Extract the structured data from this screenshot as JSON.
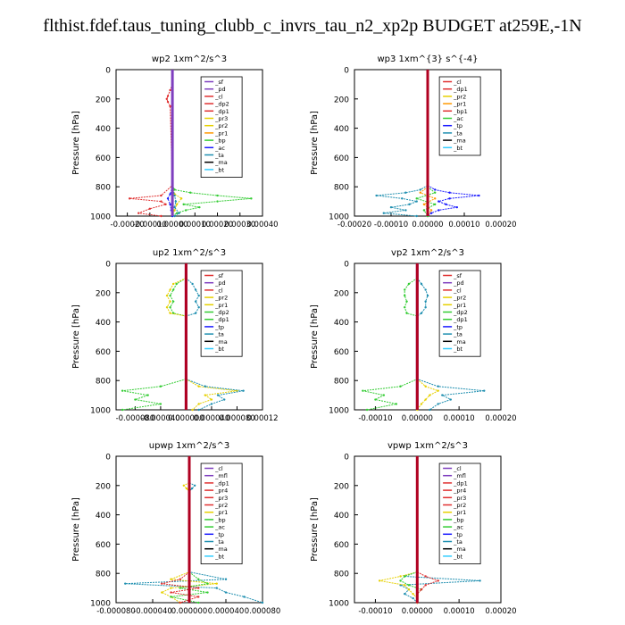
{
  "title": "flthist.fdef.taus_tuning_clubb_c_invrs_tau_n2_xp2p  BUDGET at259E,-1N",
  "y_axis_label": "Pressure [hPa]",
  "y_ticks": [
    "0",
    "200",
    "400",
    "600",
    "800",
    "1000"
  ],
  "colors": {
    "axis": "#000000",
    "red": "#e03030",
    "green": "#33cc33",
    "yellow": "#e6d000",
    "orange": "#ff9900",
    "blue": "#1a1aff",
    "teal": "#1f8fb0",
    "purple": "#7f3fbf",
    "darkred": "#b00020"
  },
  "chart_data": [
    {
      "type": "line",
      "title": "wp2   1xm^2/s^3",
      "ylabel": "Pressure [hPa]",
      "ylim": [
        1000,
        0
      ],
      "xlim": [
        -0.00025,
        0.0004
      ],
      "x_tick_labels": [
        "-0.00020",
        "-0.00010",
        "0.00000",
        "0.00010",
        "0.00020",
        "0.00030",
        "0.00040"
      ],
      "legend": [
        "_sf",
        "_pd",
        "_cl",
        "_dp2",
        "_dp1",
        "_pr3",
        "_pr2",
        "_pr1",
        "_bp",
        "_ac",
        "_ta",
        "_ma",
        "_bt"
      ],
      "legend_colors": [
        "#7f3fbf",
        "#7f3fbf",
        "#e03030",
        "#e03030",
        "#e03030",
        "#e6d000",
        "#e6d000",
        "#ff9900",
        "#33cc33",
        "#1a1aff",
        "#1f8fb0",
        "#000000",
        "#33ccff"
      ],
      "series": [
        {
          "name": "_pr1",
          "color": "#33cc33",
          "p": [
            790,
            820,
            840,
            860,
            880,
            900,
            920,
            940,
            960,
            980,
            1000
          ],
          "x": [
            0,
            1e-05,
            8e-05,
            0.0002,
            0.00035,
            0.0002,
            5e-05,
            0.00012,
            6e-05,
            2e-05,
            0
          ]
        },
        {
          "name": "_dp1",
          "color": "#e03030",
          "p": [
            100,
            140,
            180,
            200,
            220,
            250,
            790,
            860,
            880,
            900,
            920,
            950,
            980,
            1000
          ],
          "x": [
            0,
            -1e-05,
            -2e-05,
            -2.5e-05,
            -2e-05,
            -1e-05,
            0,
            -5e-05,
            -0.00019,
            -5e-05,
            -3e-05,
            -0.0001,
            -0.00015,
            -5e-05
          ]
        },
        {
          "name": "_pr2",
          "color": "#e6d000",
          "p": [
            800,
            850,
            880,
            920,
            960,
            1000
          ],
          "x": [
            0,
            1e-05,
            4e-05,
            2e-05,
            1e-05,
            0
          ]
        },
        {
          "name": "_ac",
          "color": "#1a1aff",
          "p": [
            800,
            850,
            880,
            920,
            960,
            1000
          ],
          "x": [
            0,
            -1e-05,
            -2e-05,
            -1e-05,
            -5e-06,
            0
          ]
        },
        {
          "name": "_ta",
          "color": "#1f8fb0",
          "p": [
            800,
            860,
            900,
            940,
            980,
            1000
          ],
          "x": [
            0,
            1e-05,
            1.5e-05,
            1e-05,
            3e-05,
            1e-05
          ]
        },
        {
          "name": "_bt",
          "color": "#7f3fbf",
          "p": [
            0,
            1000
          ],
          "x": [
            0,
            0
          ]
        }
      ]
    },
    {
      "type": "line",
      "title": "wp3   1xm^{3} s^{-4}",
      "ylabel": "Pressure [hPa]",
      "ylim": [
        1000,
        0
      ],
      "xlim": [
        -0.0002,
        0.0002
      ],
      "x_tick_labels": [
        "-0.00020",
        "-0.00010",
        "0.00000",
        "0.00010",
        "0.00020"
      ],
      "legend": [
        "_cl",
        "_dp1",
        "_pr2",
        "_pr1",
        "_bp1",
        "_ac",
        "_tp",
        "_ta",
        "_ma",
        "_bt"
      ],
      "legend_colors": [
        "#e03030",
        "#e03030",
        "#e6d000",
        "#ff9900",
        "#e03030",
        "#33cc33",
        "#1a1aff",
        "#1f8fb0",
        "#000000",
        "#33ccff"
      ],
      "series": [
        {
          "name": "_tp",
          "color": "#1a1aff",
          "p": [
            790,
            820,
            840,
            860,
            880,
            900,
            920,
            940,
            960,
            980,
            1000
          ],
          "x": [
            0,
            2e-05,
            6e-05,
            0.00014,
            6e-05,
            3e-05,
            5e-05,
            8e-05,
            3e-05,
            1e-05,
            0
          ]
        },
        {
          "name": "_ta",
          "color": "#1f8fb0",
          "p": [
            790,
            820,
            840,
            860,
            880,
            900,
            920,
            940,
            960,
            980,
            1000
          ],
          "x": [
            0,
            -2e-05,
            -6e-05,
            -0.00014,
            -7e-05,
            -3e-05,
            -5e-05,
            -0.0001,
            -6e-05,
            -0.00012,
            -3e-05
          ]
        },
        {
          "name": "_pr1",
          "color": "#ff9900",
          "p": [
            800,
            840,
            880,
            920,
            960,
            1000
          ],
          "x": [
            0,
            -2e-05,
            2e-05,
            -1e-05,
            1e-05,
            0
          ]
        },
        {
          "name": "_ac",
          "color": "#33cc33",
          "p": [
            800,
            840,
            880,
            920,
            960,
            1000
          ],
          "x": [
            0,
            2e-05,
            -3e-05,
            2e-05,
            -1e-05,
            0
          ]
        },
        {
          "name": "_cl",
          "color": "#b00020",
          "p": [
            0,
            1000
          ],
          "x": [
            0,
            0
          ]
        }
      ]
    },
    {
      "type": "line",
      "title": "up2   1xm^2/s^3",
      "ylabel": "Pressure [hPa]",
      "ylim": [
        1000,
        0
      ],
      "xlim": [
        -0.00011,
        0.00012
      ],
      "x_tick_labels": [
        "-0.000080",
        "-0.000040",
        "0.000000",
        "0.000040",
        "0.000080",
        "0.00012"
      ],
      "legend": [
        "_sf",
        "_pd",
        "_cl",
        "_pr2",
        "_pr1",
        "_dp2",
        "_dp1",
        "_tp",
        "_ta",
        "_ma",
        "_bt"
      ],
      "legend_colors": [
        "#e03030",
        "#7f3fbf",
        "#e03030",
        "#e6d000",
        "#e6d000",
        "#33cc33",
        "#33cc33",
        "#1a1aff",
        "#1f8fb0",
        "#000000",
        "#33ccff"
      ],
      "series": [
        {
          "name": "_dp1",
          "color": "#33cc33",
          "p": [
            100,
            140,
            180,
            220,
            260,
            300,
            340,
            360,
            790,
            840,
            870,
            900,
            930,
            960,
            1000
          ],
          "x": [
            0,
            -1.5e-05,
            -2e-05,
            -2.5e-05,
            -2e-05,
            -2.5e-05,
            -2e-05,
            0,
            0,
            -4e-05,
            -0.0001,
            -6e-05,
            -8e-05,
            -4e-05,
            -0.0001
          ]
        },
        {
          "name": "_pr1",
          "color": "#e6d000",
          "p": [
            100,
            140,
            180,
            220,
            260,
            300,
            340,
            360,
            790,
            840,
            870,
            900,
            930,
            960,
            1000
          ],
          "x": [
            0,
            -2e-05,
            -2.5e-05,
            -3e-05,
            -2.5e-05,
            -3e-05,
            -2.5e-05,
            0,
            0,
            2e-05,
            8e-05,
            3e-05,
            4e-05,
            2e-05,
            1e-05
          ]
        },
        {
          "name": "_tp",
          "color": "#1f8fb0",
          "p": [
            100,
            140,
            180,
            220,
            260,
            300,
            340,
            360,
            790,
            840,
            870,
            900,
            930,
            960,
            1000
          ],
          "x": [
            0,
            1e-05,
            1.5e-05,
            2e-05,
            1.5e-05,
            2e-05,
            1.5e-05,
            0,
            0,
            3e-05,
            9e-05,
            5e-05,
            6e-05,
            4e-05,
            2e-05
          ]
        },
        {
          "name": "_bt",
          "color": "#7f3fbf",
          "p": [
            0,
            1000
          ],
          "x": [
            0,
            0
          ]
        },
        {
          "name": "_cl",
          "color": "#b00020",
          "p": [
            0,
            1000
          ],
          "x": [
            0,
            0
          ]
        }
      ]
    },
    {
      "type": "line",
      "title": "vp2   1xm^2/s^3",
      "ylabel": "Pressure [hPa]",
      "ylim": [
        1000,
        0
      ],
      "xlim": [
        -0.00015,
        0.0002
      ],
      "x_tick_labels": [
        "-0.00010",
        "0.00000",
        "0.00010",
        "0.00020"
      ],
      "legend": [
        "_sf",
        "_pd",
        "_cl",
        "_pr2",
        "_pr1",
        "_dp2",
        "_dp1",
        "_tp",
        "_ta",
        "_ma",
        "_bt"
      ],
      "legend_colors": [
        "#e03030",
        "#7f3fbf",
        "#e03030",
        "#e6d000",
        "#e6d000",
        "#33cc33",
        "#33cc33",
        "#1a1aff",
        "#1f8fb0",
        "#000000",
        "#33ccff"
      ],
      "series": [
        {
          "name": "_dp1",
          "color": "#33cc33",
          "p": [
            100,
            140,
            180,
            220,
            260,
            300,
            340,
            360,
            790,
            840,
            870,
            900,
            930,
            960,
            1000
          ],
          "x": [
            0,
            -2e-05,
            -3e-05,
            -3e-05,
            -2.5e-05,
            -3e-05,
            -2.5e-05,
            0,
            0,
            -4e-05,
            -0.00013,
            -8e-05,
            -0.0001,
            -5e-05,
            -0.00012
          ]
        },
        {
          "name": "_tp",
          "color": "#1f8fb0",
          "p": [
            100,
            140,
            180,
            220,
            260,
            300,
            340,
            360,
            790,
            840,
            870,
            900,
            930,
            960,
            1000
          ],
          "x": [
            0,
            1e-05,
            2e-05,
            2.5e-05,
            2e-05,
            2e-05,
            1e-05,
            0,
            0,
            5e-05,
            0.00016,
            6e-05,
            8e-05,
            5e-05,
            3e-05
          ]
        },
        {
          "name": "_pr1",
          "color": "#e6d000",
          "p": [
            790,
            840,
            870,
            900,
            930,
            960,
            1000
          ],
          "x": [
            0,
            2e-05,
            5e-05,
            3e-05,
            2e-05,
            1e-05,
            0
          ]
        },
        {
          "name": "_bt",
          "color": "#7f3fbf",
          "p": [
            0,
            1000
          ],
          "x": [
            0,
            0
          ]
        },
        {
          "name": "_cl",
          "color": "#b00020",
          "p": [
            0,
            1000
          ],
          "x": [
            0,
            0
          ]
        }
      ]
    },
    {
      "type": "line",
      "title": "upwp   1xm^2/s^3",
      "ylabel": "Pressure [hPa]",
      "ylim": [
        1000,
        0
      ],
      "xlim": [
        -8e-05,
        8e-05
      ],
      "x_tick_labels": [
        "-0.000080",
        "-0.000040",
        "0.000000",
        "0.000040",
        "0.000080"
      ],
      "legend": [
        "_cl",
        "_mfl",
        "_dp1",
        "_pr4",
        "_pr3",
        "_pr2",
        "_pr1",
        "_bp",
        "_ac",
        "_tp",
        "_ta",
        "_ma",
        "_bt"
      ],
      "legend_colors": [
        "#7f3fbf",
        "#7f3fbf",
        "#e03030",
        "#e03030",
        "#e03030",
        "#e03030",
        "#e6d000",
        "#33cc33",
        "#33cc33",
        "#1a1aff",
        "#1f8fb0",
        "#000000",
        "#33ccff"
      ],
      "series": [
        {
          "name": "_ta",
          "color": "#1f8fb0",
          "p": [
            180,
            200,
            220,
            240,
            790,
            840,
            870,
            900,
            930,
            960,
            1000
          ],
          "x": [
            0,
            6e-06,
            3e-06,
            0,
            0,
            4e-05,
            -7e-05,
            3e-05,
            4e-05,
            6e-05,
            8e-05
          ]
        },
        {
          "name": "_pr1",
          "color": "#e6d000",
          "p": [
            180,
            200,
            220,
            240,
            790,
            840,
            870,
            900,
            930,
            960,
            1000
          ],
          "x": [
            0,
            -6e-06,
            -3e-06,
            0,
            0,
            -2e-05,
            3e-05,
            -2e-05,
            -3e-05,
            -2e-05,
            -1e-05
          ]
        },
        {
          "name": "_ac",
          "color": "#33cc33",
          "p": [
            790,
            840,
            870,
            900,
            930,
            960,
            1000
          ],
          "x": [
            0,
            1e-05,
            2e-05,
            -1e-05,
            2e-05,
            -2e-05,
            1e-05
          ]
        },
        {
          "name": "_pr2",
          "color": "#e03030",
          "p": [
            790,
            840,
            870,
            900,
            930,
            960,
            1000
          ],
          "x": [
            0,
            -1e-05,
            -3e-05,
            1e-05,
            -2e-05,
            1e-05,
            -1e-05
          ]
        },
        {
          "name": "_cl",
          "color": "#b00020",
          "p": [
            0,
            1000
          ],
          "x": [
            0,
            0
          ]
        }
      ]
    },
    {
      "type": "line",
      "title": "vpwp   1xm^2/s^3",
      "ylabel": "Pressure [hPa]",
      "ylim": [
        1000,
        0
      ],
      "xlim": [
        -0.00015,
        0.0002
      ],
      "x_tick_labels": [
        "-0.00010",
        "0.00000",
        "0.00010",
        "0.00020"
      ],
      "legend": [
        "_cl",
        "_mfl",
        "_dp1",
        "_pr4",
        "_pr3",
        "_pr2",
        "_pr1",
        "_bp",
        "_ac",
        "_tp",
        "_ta",
        "_ma",
        "_bt"
      ],
      "legend_colors": [
        "#7f3fbf",
        "#7f3fbf",
        "#e03030",
        "#e03030",
        "#e03030",
        "#e03030",
        "#e6d000",
        "#33cc33",
        "#33cc33",
        "#1a1aff",
        "#1f8fb0",
        "#000000",
        "#33ccff"
      ],
      "series": [
        {
          "name": "_ta",
          "color": "#1f8fb0",
          "p": [
            790,
            820,
            850,
            880,
            910,
            940,
            970,
            1000
          ],
          "x": [
            0,
            -3e-05,
            0.00015,
            -4e-05,
            -2e-05,
            -3e-05,
            -1e-05,
            0
          ]
        },
        {
          "name": "_pr1",
          "color": "#e6d000",
          "p": [
            790,
            820,
            850,
            880,
            910,
            940,
            970,
            1000
          ],
          "x": [
            0,
            -4e-05,
            -9e-05,
            -3e-05,
            -2e-05,
            -1e-05,
            0,
            0
          ]
        },
        {
          "name": "_ac",
          "color": "#33cc33",
          "p": [
            790,
            820,
            850,
            880,
            910,
            940,
            970,
            1000
          ],
          "x": [
            0,
            -3e-05,
            -4e-05,
            -2e-05,
            1e-05,
            0,
            0,
            0
          ]
        },
        {
          "name": "_pr2",
          "color": "#e03030",
          "p": [
            790,
            820,
            850,
            880,
            910,
            940,
            970,
            1000
          ],
          "x": [
            0,
            2e-05,
            5e-05,
            2e-05,
            1e-05,
            0,
            0,
            0
          ]
        },
        {
          "name": "_cl",
          "color": "#b00020",
          "p": [
            0,
            1000
          ],
          "x": [
            0,
            0
          ]
        }
      ]
    }
  ]
}
